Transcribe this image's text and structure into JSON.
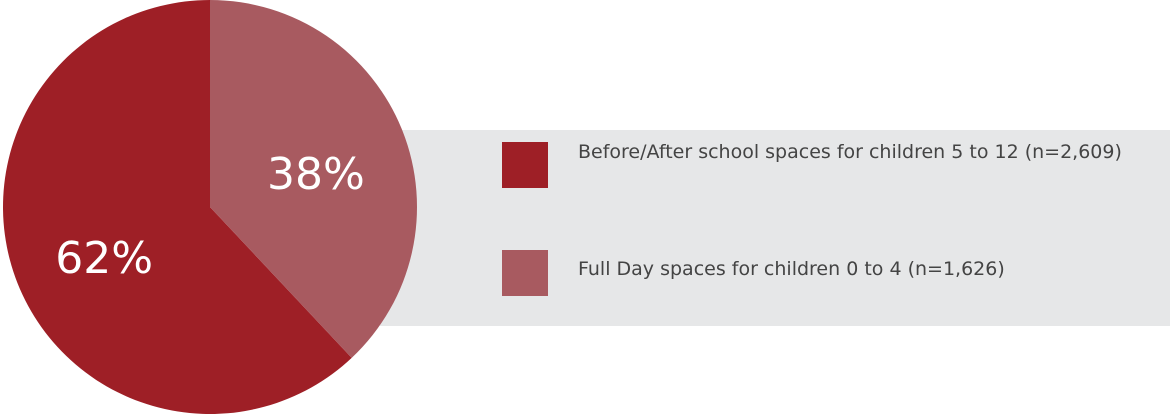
{
  "chart_data": {
    "type": "pie",
    "categories": [
      "Before/After school spaces for children 5 to 12 (n=2,609)",
      "Full Day spaces for children 0 to 4 (n=1,626)"
    ],
    "values": [
      62,
      38
    ],
    "value_labels": [
      "62%",
      "38%"
    ],
    "colors": [
      "#9e1f26",
      "#a85a60"
    ]
  }
}
